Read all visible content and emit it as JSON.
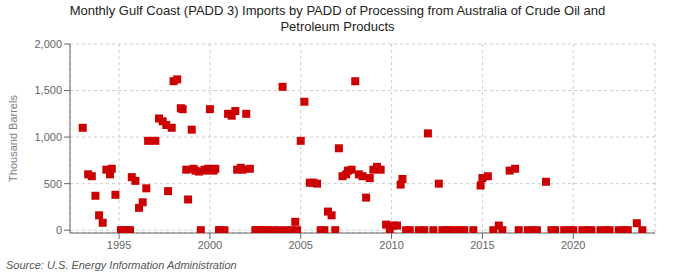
{
  "chart_data": {
    "type": "scatter",
    "title": "Monthly Gulf Coast (PADD 3) Imports by PADD of Processing from Australia of Crude Oil and\nPetroleum Products",
    "ylabel": "Thousand Barrels",
    "annotation": "Source: U.S. Energy Information Administration",
    "color": "#cc0000",
    "marker": "square",
    "grid": true,
    "xlim": [
      1992.3,
      2024.5
    ],
    "ylim": [
      -30,
      2000
    ],
    "xticks": [
      1995,
      2000,
      2005,
      2010,
      2015,
      2020
    ],
    "yticks": [
      0,
      500,
      {
        "value": 1000,
        "label": "1,000"
      },
      {
        "value": 1500,
        "label": "1,500"
      },
      {
        "value": 2000,
        "label": "2,000"
      }
    ],
    "x": [
      1993.0,
      1993.3,
      1993.5,
      1993.7,
      1993.9,
      1994.1,
      1994.3,
      1994.5,
      1994.6,
      1994.8,
      1995.1,
      1995.2,
      1995.4,
      1995.6,
      1995.7,
      1995.9,
      1996.1,
      1996.3,
      1996.5,
      1996.6,
      1997.0,
      1997.2,
      1997.4,
      1997.6,
      1997.7,
      1997.9,
      1998.0,
      1998.2,
      1998.4,
      1998.5,
      1998.7,
      1998.8,
      1999.0,
      1999.1,
      1999.2,
      1999.4,
      1999.5,
      1999.7,
      1999.8,
      1999.9,
      2000.0,
      2000.2,
      2000.3,
      2000.5,
      2000.6,
      2000.8,
      2001.0,
      2001.2,
      2001.4,
      2001.5,
      2001.7,
      2001.8,
      2002.0,
      2002.2,
      2002.5,
      2002.6,
      2002.8,
      2003.0,
      2003.2,
      2003.5,
      2003.8,
      2004.0,
      2004.2,
      2004.5,
      2004.7,
      2004.8,
      2005.0,
      2005.2,
      2005.5,
      2005.7,
      2005.9,
      2006.1,
      2006.3,
      2006.5,
      2006.7,
      2006.9,
      2007.1,
      2007.3,
      2007.5,
      2007.6,
      2007.8,
      2008.0,
      2008.2,
      2008.4,
      2008.6,
      2008.8,
      2009.0,
      2009.2,
      2009.4,
      2009.7,
      2009.9,
      2010.1,
      2010.3,
      2010.5,
      2010.6,
      2010.8,
      2011.0,
      2011.5,
      2011.8,
      2012.0,
      2012.3,
      2012.6,
      2012.8,
      2013.0,
      2013.2,
      2013.5,
      2013.8,
      2014.0,
      2014.5,
      2014.9,
      2015.0,
      2015.3,
      2015.6,
      2015.9,
      2016.1,
      2016.5,
      2016.8,
      2017.0,
      2017.5,
      2017.8,
      2018.0,
      2018.5,
      2018.8,
      2019.0,
      2019.5,
      2019.8,
      2020.0,
      2020.5,
      2020.8,
      2021.0,
      2021.5,
      2021.8,
      2022.0,
      2022.5,
      2022.8,
      2023.0,
      2023.5,
      2023.8
    ],
    "values": [
      1100,
      600,
      580,
      370,
      160,
      80,
      650,
      600,
      660,
      380,
      0,
      0,
      0,
      0,
      570,
      530,
      240,
      300,
      450,
      960,
      960,
      1200,
      1170,
      1130,
      420,
      1100,
      1600,
      1620,
      1310,
      1300,
      650,
      330,
      1080,
      660,
      640,
      630,
      0,
      650,
      640,
      660,
      1300,
      640,
      660,
      0,
      0,
      0,
      1250,
      1230,
      1280,
      650,
      670,
      650,
      1250,
      660,
      0,
      0,
      0,
      0,
      0,
      0,
      0,
      1540,
      0,
      0,
      90,
      0,
      960,
      1380,
      510,
      510,
      500,
      0,
      0,
      200,
      160,
      0,
      880,
      580,
      600,
      640,
      650,
      1600,
      600,
      580,
      350,
      560,
      650,
      680,
      650,
      60,
      0,
      50,
      50,
      490,
      550,
      0,
      0,
      0,
      0,
      1040,
      0,
      500,
      0,
      0,
      0,
      0,
      0,
      0,
      0,
      480,
      560,
      580,
      0,
      50,
      0,
      640,
      660,
      0,
      0,
      0,
      0,
      520,
      0,
      0,
      0,
      0,
      0,
      0,
      0,
      0,
      0,
      0,
      0,
      0,
      0,
      0,
      75,
      0
    ]
  }
}
